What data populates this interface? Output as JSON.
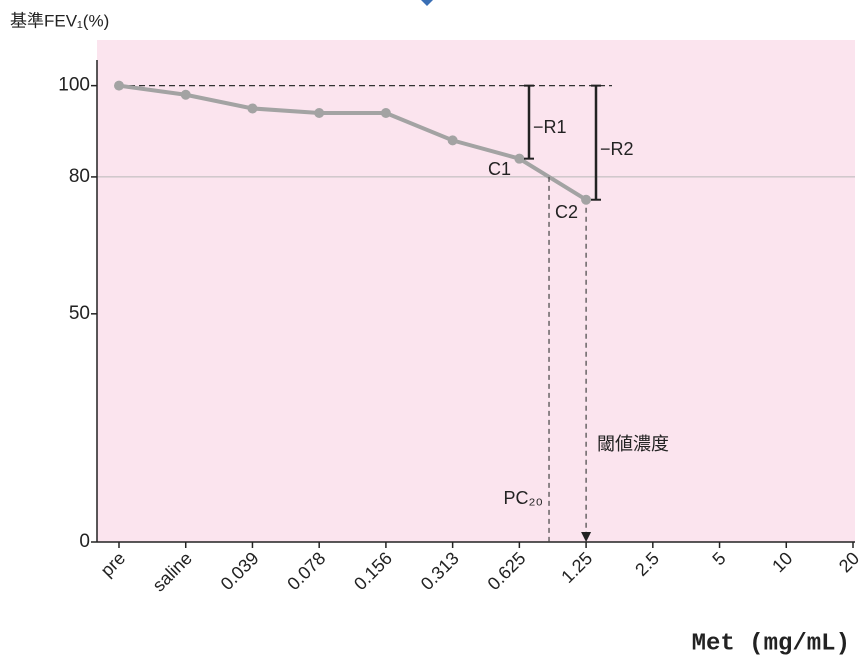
{
  "chart_data": {
    "type": "line",
    "y_label": "基準FEV₁(%)",
    "x_label": "Met (mg/mL)",
    "categories": [
      "pre",
      "saline",
      "0.039",
      "0.078",
      "0.156",
      "0.313",
      "0.625",
      "1.25",
      "2.5",
      "5",
      "10",
      "20"
    ],
    "values": [
      100,
      98,
      95,
      94,
      94,
      88,
      84,
      75,
      null,
      null,
      null,
      null
    ],
    "color": "#a3a3a3",
    "ylim": [
      0,
      110
    ],
    "yticks": [
      0,
      50,
      80,
      100
    ],
    "annotations": [
      "C1",
      "C2",
      "−R1",
      "−R2",
      "PC₂₀",
      "閾値濃度"
    ]
  }
}
